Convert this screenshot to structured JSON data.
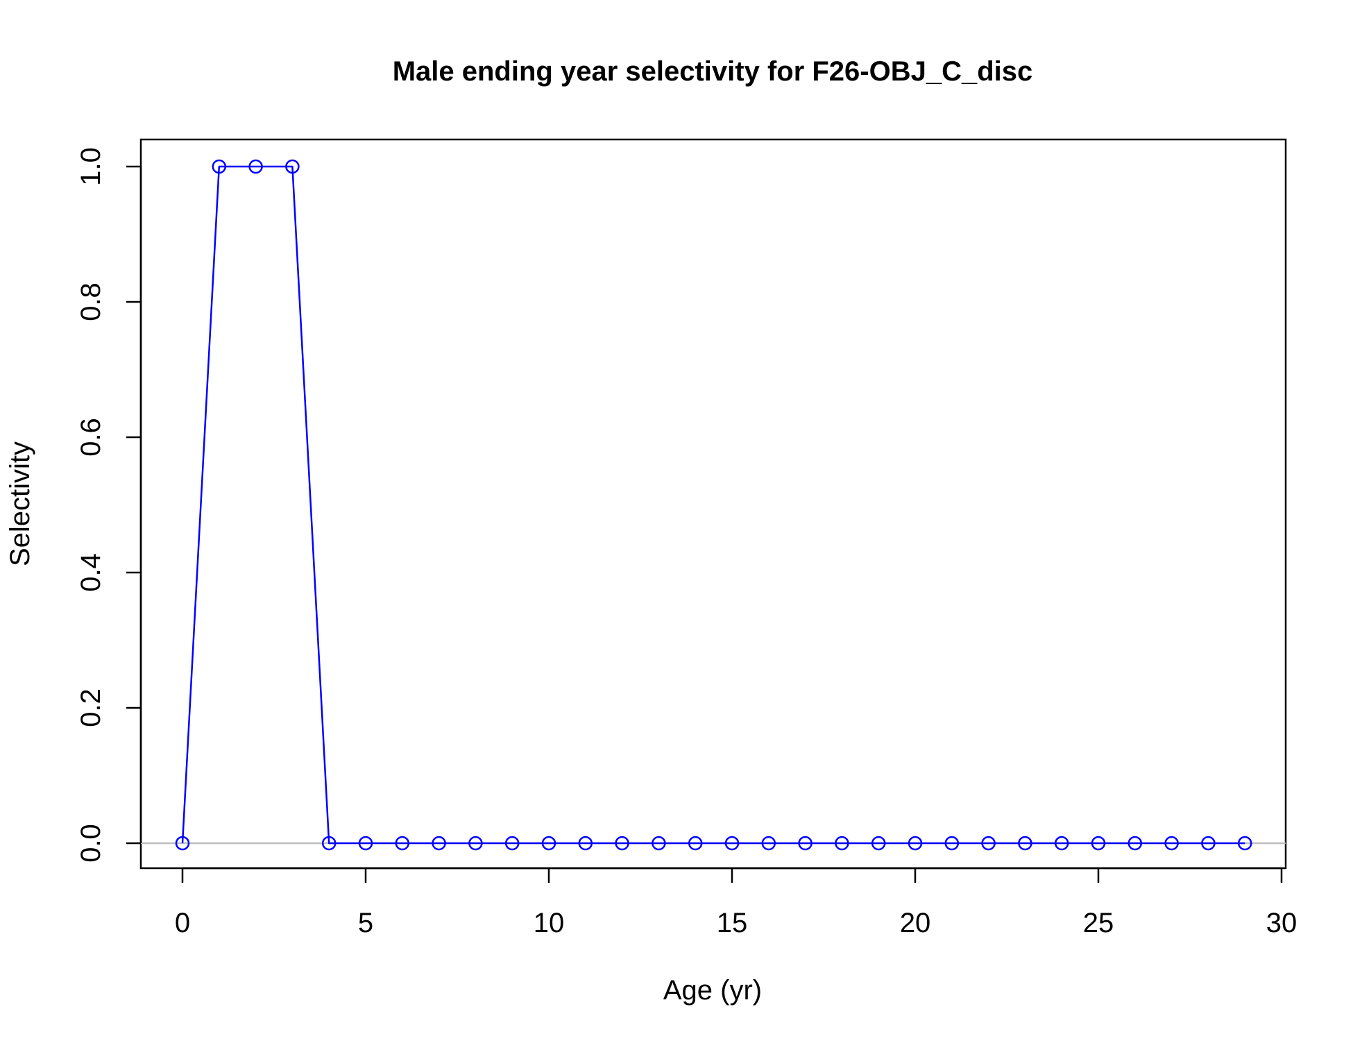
{
  "chart_data": {
    "type": "line",
    "title": "Male ending year selectivity for F26-OBJ_C_disc",
    "xlabel": "Age (yr)",
    "ylabel": "Selectivity",
    "xlim": [
      0,
      30
    ],
    "ylim": [
      0,
      1
    ],
    "x_ticks": [
      "0",
      "5",
      "10",
      "15",
      "20",
      "25",
      "30"
    ],
    "y_ticks": [
      "0.0",
      "0.2",
      "0.4",
      "0.6",
      "0.8",
      "1.0"
    ],
    "grid": false,
    "reference_line": {
      "y": 0,
      "color": "#bebebe"
    },
    "series": [
      {
        "color": "#0000ff",
        "marker": "open-circle",
        "x": [
          0,
          1,
          2,
          3,
          4,
          5,
          6,
          7,
          8,
          9,
          10,
          11,
          12,
          13,
          14,
          15,
          16,
          17,
          18,
          19,
          20,
          21,
          22,
          23,
          24,
          25,
          26,
          27,
          28,
          29
        ],
        "y": [
          0,
          1,
          1,
          1,
          0,
          0,
          0,
          0,
          0,
          0,
          0,
          0,
          0,
          0,
          0,
          0,
          0,
          0,
          0,
          0,
          0,
          0,
          0,
          0,
          0,
          0,
          0,
          0,
          0,
          0
        ]
      }
    ]
  }
}
